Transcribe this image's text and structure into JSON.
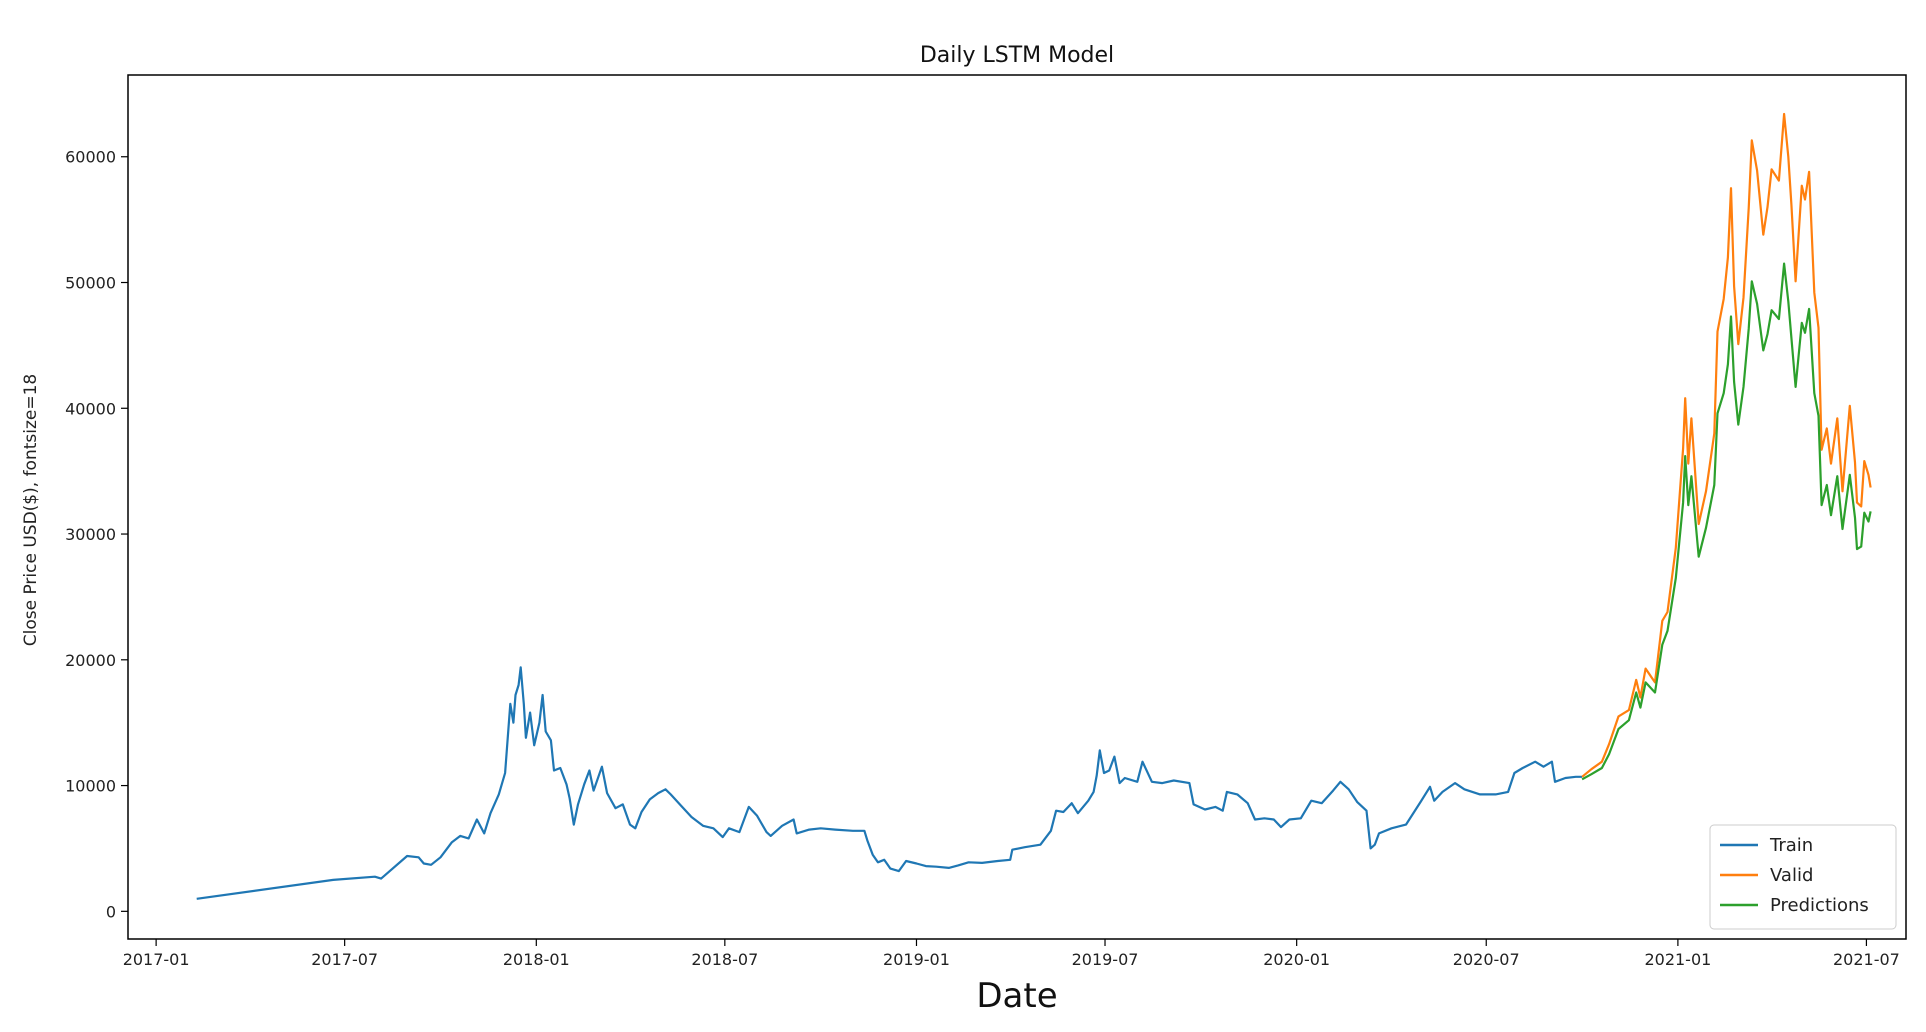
{
  "chart_data": {
    "type": "line",
    "title": "Daily LSTM Model",
    "xlabel": "Date",
    "ylabel": "Close Price USD($), fontsize=18",
    "x_axis": {
      "type": "date",
      "range": [
        "2016-12-05",
        "2021-08-08"
      ],
      "ticks": [
        "2017-01",
        "2017-07",
        "2018-01",
        "2018-07",
        "2019-01",
        "2019-07",
        "2020-01",
        "2020-07",
        "2021-01",
        "2021-07"
      ]
    },
    "y_axis": {
      "range": [
        -2200,
        66500
      ],
      "ticks": [
        0,
        10000,
        20000,
        30000,
        40000,
        50000,
        60000
      ]
    },
    "grid": false,
    "legend_position": "bottom-right",
    "series": [
      {
        "name": "Train",
        "color": "#1f77b4",
        "points": [
          [
            "2017-02-09",
            1000
          ],
          [
            "2017-06-20",
            2500
          ],
          [
            "2017-07-30",
            2750
          ],
          [
            "2017-08-05",
            2600
          ],
          [
            "2017-08-30",
            4400
          ],
          [
            "2017-09-10",
            4300
          ],
          [
            "2017-09-15",
            3800
          ],
          [
            "2017-09-22",
            3700
          ],
          [
            "2017-10-01",
            4300
          ],
          [
            "2017-10-12",
            5500
          ],
          [
            "2017-10-20",
            6000
          ],
          [
            "2017-10-28",
            5800
          ],
          [
            "2017-11-05",
            7300
          ],
          [
            "2017-11-12",
            6200
          ],
          [
            "2017-11-18",
            7800
          ],
          [
            "2017-11-26",
            9300
          ],
          [
            "2017-12-02",
            11000
          ],
          [
            "2017-12-07",
            16500
          ],
          [
            "2017-12-10",
            15000
          ],
          [
            "2017-12-12",
            17200
          ],
          [
            "2017-12-15",
            18000
          ],
          [
            "2017-12-17",
            19400
          ],
          [
            "2017-12-20",
            16500
          ],
          [
            "2017-12-22",
            13800
          ],
          [
            "2017-12-26",
            15800
          ],
          [
            "2017-12-30",
            13200
          ],
          [
            "2018-01-04",
            15000
          ],
          [
            "2018-01-07",
            17200
          ],
          [
            "2018-01-10",
            14300
          ],
          [
            "2018-01-15",
            13600
          ],
          [
            "2018-01-18",
            11200
          ],
          [
            "2018-01-24",
            11400
          ],
          [
            "2018-01-30",
            10100
          ],
          [
            "2018-02-02",
            9000
          ],
          [
            "2018-02-06",
            6900
          ],
          [
            "2018-02-10",
            8500
          ],
          [
            "2018-02-16",
            10100
          ],
          [
            "2018-02-21",
            11200
          ],
          [
            "2018-02-25",
            9600
          ],
          [
            "2018-03-05",
            11500
          ],
          [
            "2018-03-10",
            9400
          ],
          [
            "2018-03-18",
            8200
          ],
          [
            "2018-03-25",
            8500
          ],
          [
            "2018-04-01",
            6900
          ],
          [
            "2018-04-06",
            6600
          ],
          [
            "2018-04-12",
            7900
          ],
          [
            "2018-04-20",
            8900
          ],
          [
            "2018-04-28",
            9400
          ],
          [
            "2018-05-05",
            9700
          ],
          [
            "2018-05-10",
            9300
          ],
          [
            "2018-05-20",
            8400
          ],
          [
            "2018-05-30",
            7500
          ],
          [
            "2018-06-10",
            6800
          ],
          [
            "2018-06-20",
            6600
          ],
          [
            "2018-06-29",
            5900
          ],
          [
            "2018-07-05",
            6600
          ],
          [
            "2018-07-15",
            6300
          ],
          [
            "2018-07-24",
            8300
          ],
          [
            "2018-08-01",
            7600
          ],
          [
            "2018-08-10",
            6300
          ],
          [
            "2018-08-14",
            6000
          ],
          [
            "2018-08-25",
            6800
          ],
          [
            "2018-09-05",
            7300
          ],
          [
            "2018-09-08",
            6200
          ],
          [
            "2018-09-20",
            6500
          ],
          [
            "2018-10-01",
            6600
          ],
          [
            "2018-10-15",
            6500
          ],
          [
            "2018-11-01",
            6400
          ],
          [
            "2018-11-12",
            6400
          ],
          [
            "2018-11-15",
            5600
          ],
          [
            "2018-11-20",
            4500
          ],
          [
            "2018-11-25",
            3900
          ],
          [
            "2018-12-01",
            4100
          ],
          [
            "2018-12-07",
            3400
          ],
          [
            "2018-12-15",
            3200
          ],
          [
            "2018-12-22",
            4000
          ],
          [
            "2019-01-01",
            3800
          ],
          [
            "2019-01-10",
            3600
          ],
          [
            "2019-01-20",
            3550
          ],
          [
            "2019-02-01",
            3450
          ],
          [
            "2019-02-10",
            3650
          ],
          [
            "2019-02-20",
            3900
          ],
          [
            "2019-03-05",
            3850
          ],
          [
            "2019-03-20",
            4000
          ],
          [
            "2019-04-01",
            4100
          ],
          [
            "2019-04-03",
            4900
          ],
          [
            "2019-04-15",
            5100
          ],
          [
            "2019-04-30",
            5300
          ],
          [
            "2019-05-10",
            6400
          ],
          [
            "2019-05-15",
            8000
          ],
          [
            "2019-05-22",
            7900
          ],
          [
            "2019-05-30",
            8600
          ],
          [
            "2019-06-05",
            7800
          ],
          [
            "2019-06-15",
            8800
          ],
          [
            "2019-06-20",
            9500
          ],
          [
            "2019-06-23",
            10800
          ],
          [
            "2019-06-26",
            12800
          ],
          [
            "2019-06-30",
            11000
          ],
          [
            "2019-07-05",
            11200
          ],
          [
            "2019-07-10",
            12300
          ],
          [
            "2019-07-15",
            10200
          ],
          [
            "2019-07-20",
            10600
          ],
          [
            "2019-08-01",
            10300
          ],
          [
            "2019-08-06",
            11900
          ],
          [
            "2019-08-15",
            10300
          ],
          [
            "2019-08-25",
            10200
          ],
          [
            "2019-09-05",
            10400
          ],
          [
            "2019-09-20",
            10200
          ],
          [
            "2019-09-24",
            8500
          ],
          [
            "2019-10-05",
            8100
          ],
          [
            "2019-10-15",
            8300
          ],
          [
            "2019-10-22",
            8000
          ],
          [
            "2019-10-26",
            9500
          ],
          [
            "2019-11-05",
            9300
          ],
          [
            "2019-11-15",
            8600
          ],
          [
            "2019-11-22",
            7300
          ],
          [
            "2019-12-01",
            7400
          ],
          [
            "2019-12-10",
            7300
          ],
          [
            "2019-12-17",
            6700
          ],
          [
            "2019-12-25",
            7300
          ],
          [
            "2020-01-05",
            7400
          ],
          [
            "2020-01-15",
            8800
          ],
          [
            "2020-01-25",
            8600
          ],
          [
            "2020-02-05",
            9600
          ],
          [
            "2020-02-12",
            10300
          ],
          [
            "2020-02-20",
            9700
          ],
          [
            "2020-02-28",
            8700
          ],
          [
            "2020-03-08",
            8000
          ],
          [
            "2020-03-12",
            5000
          ],
          [
            "2020-03-16",
            5300
          ],
          [
            "2020-03-20",
            6200
          ],
          [
            "2020-04-01",
            6600
          ],
          [
            "2020-04-15",
            6900
          ],
          [
            "2020-04-29",
            8700
          ],
          [
            "2020-05-08",
            9900
          ],
          [
            "2020-05-12",
            8800
          ],
          [
            "2020-05-20",
            9500
          ],
          [
            "2020-06-01",
            10200
          ],
          [
            "2020-06-10",
            9700
          ],
          [
            "2020-06-25",
            9300
          ],
          [
            "2020-07-10",
            9300
          ],
          [
            "2020-07-22",
            9500
          ],
          [
            "2020-07-28",
            11000
          ],
          [
            "2020-08-05",
            11400
          ],
          [
            "2020-08-17",
            11900
          ],
          [
            "2020-08-25",
            11500
          ],
          [
            "2020-09-02",
            11900
          ],
          [
            "2020-09-05",
            10300
          ],
          [
            "2020-09-15",
            10600
          ],
          [
            "2020-09-25",
            10700
          ],
          [
            "2020-10-01",
            10700
          ]
        ]
      },
      {
        "name": "Valid",
        "color": "#ff7f0e",
        "points": [
          [
            "2020-10-01",
            10700
          ],
          [
            "2020-10-10",
            11300
          ],
          [
            "2020-10-20",
            11900
          ],
          [
            "2020-10-27",
            13300
          ],
          [
            "2020-11-05",
            15500
          ],
          [
            "2020-11-15",
            16000
          ],
          [
            "2020-11-22",
            18400
          ],
          [
            "2020-11-26",
            17000
          ],
          [
            "2020-12-01",
            19300
          ],
          [
            "2020-12-10",
            18200
          ],
          [
            "2020-12-17",
            23100
          ],
          [
            "2020-12-22",
            23800
          ],
          [
            "2020-12-30",
            28900
          ],
          [
            "2021-01-06",
            36800
          ],
          [
            "2021-01-08",
            40800
          ],
          [
            "2021-01-11",
            35600
          ],
          [
            "2021-01-14",
            39200
          ],
          [
            "2021-01-21",
            30800
          ],
          [
            "2021-01-28",
            33400
          ],
          [
            "2021-02-05",
            38000
          ],
          [
            "2021-02-08",
            46100
          ],
          [
            "2021-02-14",
            48700
          ],
          [
            "2021-02-18",
            52000
          ],
          [
            "2021-02-21",
            57500
          ],
          [
            "2021-02-24",
            49700
          ],
          [
            "2021-02-28",
            45100
          ],
          [
            "2021-03-05",
            48800
          ],
          [
            "2021-03-10",
            55900
          ],
          [
            "2021-03-13",
            61300
          ],
          [
            "2021-03-18",
            58900
          ],
          [
            "2021-03-24",
            53800
          ],
          [
            "2021-03-28",
            56000
          ],
          [
            "2021-04-01",
            59000
          ],
          [
            "2021-04-08",
            58100
          ],
          [
            "2021-04-13",
            63400
          ],
          [
            "2021-04-17",
            60000
          ],
          [
            "2021-04-20",
            56200
          ],
          [
            "2021-04-24",
            50100
          ],
          [
            "2021-04-30",
            57700
          ],
          [
            "2021-05-03",
            56600
          ],
          [
            "2021-05-07",
            58800
          ],
          [
            "2021-05-12",
            49200
          ],
          [
            "2021-05-16",
            46400
          ],
          [
            "2021-05-19",
            36700
          ],
          [
            "2021-05-24",
            38400
          ],
          [
            "2021-05-28",
            35600
          ],
          [
            "2021-06-03",
            39200
          ],
          [
            "2021-06-08",
            33400
          ],
          [
            "2021-06-15",
            40200
          ],
          [
            "2021-06-20",
            35700
          ],
          [
            "2021-06-22",
            32500
          ],
          [
            "2021-06-26",
            32200
          ],
          [
            "2021-06-29",
            35800
          ],
          [
            "2021-07-03",
            34700
          ],
          [
            "2021-07-05",
            33700
          ]
        ]
      },
      {
        "name": "Predictions",
        "color": "#2ca02c",
        "points": [
          [
            "2020-10-01",
            10500
          ],
          [
            "2020-10-10",
            10900
          ],
          [
            "2020-10-20",
            11400
          ],
          [
            "2020-10-27",
            12500
          ],
          [
            "2020-11-05",
            14500
          ],
          [
            "2020-11-15",
            15200
          ],
          [
            "2020-11-22",
            17400
          ],
          [
            "2020-11-26",
            16200
          ],
          [
            "2020-12-01",
            18200
          ],
          [
            "2020-12-10",
            17400
          ],
          [
            "2020-12-17",
            21200
          ],
          [
            "2020-12-22",
            22300
          ],
          [
            "2020-12-30",
            26500
          ],
          [
            "2021-01-06",
            32500
          ],
          [
            "2021-01-08",
            36200
          ],
          [
            "2021-01-11",
            32300
          ],
          [
            "2021-01-14",
            34600
          ],
          [
            "2021-01-21",
            28200
          ],
          [
            "2021-01-28",
            30500
          ],
          [
            "2021-02-05",
            33900
          ],
          [
            "2021-02-08",
            39600
          ],
          [
            "2021-02-14",
            41200
          ],
          [
            "2021-02-18",
            43500
          ],
          [
            "2021-02-21",
            47300
          ],
          [
            "2021-02-24",
            42100
          ],
          [
            "2021-02-28",
            38700
          ],
          [
            "2021-03-05",
            41700
          ],
          [
            "2021-03-10",
            46300
          ],
          [
            "2021-03-13",
            50100
          ],
          [
            "2021-03-18",
            48300
          ],
          [
            "2021-03-24",
            44600
          ],
          [
            "2021-03-28",
            45900
          ],
          [
            "2021-04-01",
            47800
          ],
          [
            "2021-04-08",
            47100
          ],
          [
            "2021-04-13",
            51500
          ],
          [
            "2021-04-17",
            48500
          ],
          [
            "2021-04-20",
            45600
          ],
          [
            "2021-04-24",
            41700
          ],
          [
            "2021-04-30",
            46800
          ],
          [
            "2021-05-03",
            46000
          ],
          [
            "2021-05-07",
            47900
          ],
          [
            "2021-05-12",
            41200
          ],
          [
            "2021-05-16",
            39400
          ],
          [
            "2021-05-19",
            32300
          ],
          [
            "2021-05-24",
            33900
          ],
          [
            "2021-05-28",
            31500
          ],
          [
            "2021-06-03",
            34600
          ],
          [
            "2021-06-08",
            30400
          ],
          [
            "2021-06-15",
            34700
          ],
          [
            "2021-06-20",
            31300
          ],
          [
            "2021-06-22",
            28800
          ],
          [
            "2021-06-26",
            29000
          ],
          [
            "2021-06-29",
            31700
          ],
          [
            "2021-07-03",
            31000
          ],
          [
            "2021-07-05",
            31800
          ]
        ]
      }
    ]
  }
}
